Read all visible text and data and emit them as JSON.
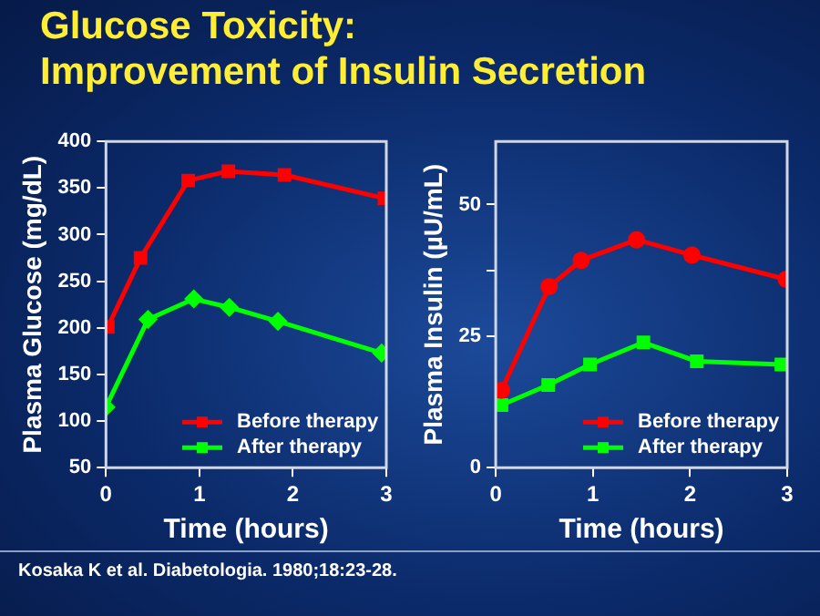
{
  "chart_data": [
    {
      "type": "line",
      "title": "Glucose Toxicity:\nImprovement of Insulin Secretion",
      "xlabel": "Time (hours)",
      "ylabel": "Plasma Glucose (mg/dL)",
      "xlim": [
        0,
        3
      ],
      "xticks": [
        0,
        1,
        2,
        3
      ],
      "ylim": [
        50,
        400
      ],
      "yticks": [
        50,
        100,
        150,
        200,
        250,
        300,
        350,
        400
      ],
      "grid": false,
      "legend": "bottom right",
      "annotations": [
        "Kosaka K et al. Diabetologia. 1980;18:23-28."
      ],
      "series": [
        {
          "name": "Before therapy",
          "color": "#ff0000",
          "marker": "square",
          "x": [
            0.02,
            0.37,
            0.88,
            1.31,
            1.91,
            2.98
          ],
          "values": [
            201,
            275,
            358,
            368,
            364,
            339
          ]
        },
        {
          "name": "After therapy",
          "color": "#00ff00",
          "marker": "diamond",
          "x": [
            0,
            0.45,
            0.94,
            1.32,
            1.84,
            2.95
          ],
          "values": [
            115,
            209,
            231,
            222,
            207,
            173
          ]
        }
      ]
    },
    {
      "type": "line",
      "xlabel": "Time (hours)",
      "ylabel": "Plasma Insulin (µU/mL)",
      "xlim": [
        0,
        3
      ],
      "xticks": [
        0,
        1,
        2,
        3
      ],
      "ylim": [
        0,
        62
      ],
      "yticks": [
        0,
        25,
        {
          "value": 37.5,
          "label": null
        },
        50
      ],
      "grid": false,
      "legend": "bottom right",
      "series": [
        {
          "name": "Before therapy",
          "color": "#ff0000",
          "marker": "circle",
          "x": [
            0.06,
            0.55,
            0.88,
            1.45,
            2.02,
            2.99
          ],
          "values": [
            14.7,
            34.4,
            39.4,
            43.3,
            40.4,
            35.8
          ]
        },
        {
          "name": "After therapy",
          "color": "#00ff00",
          "marker": "square",
          "x": [
            0.06,
            0.54,
            0.97,
            1.52,
            2.07,
            2.94
          ],
          "values": [
            11.9,
            15.7,
            19.6,
            23.8,
            20.2,
            19.6
          ]
        }
      ]
    }
  ]
}
